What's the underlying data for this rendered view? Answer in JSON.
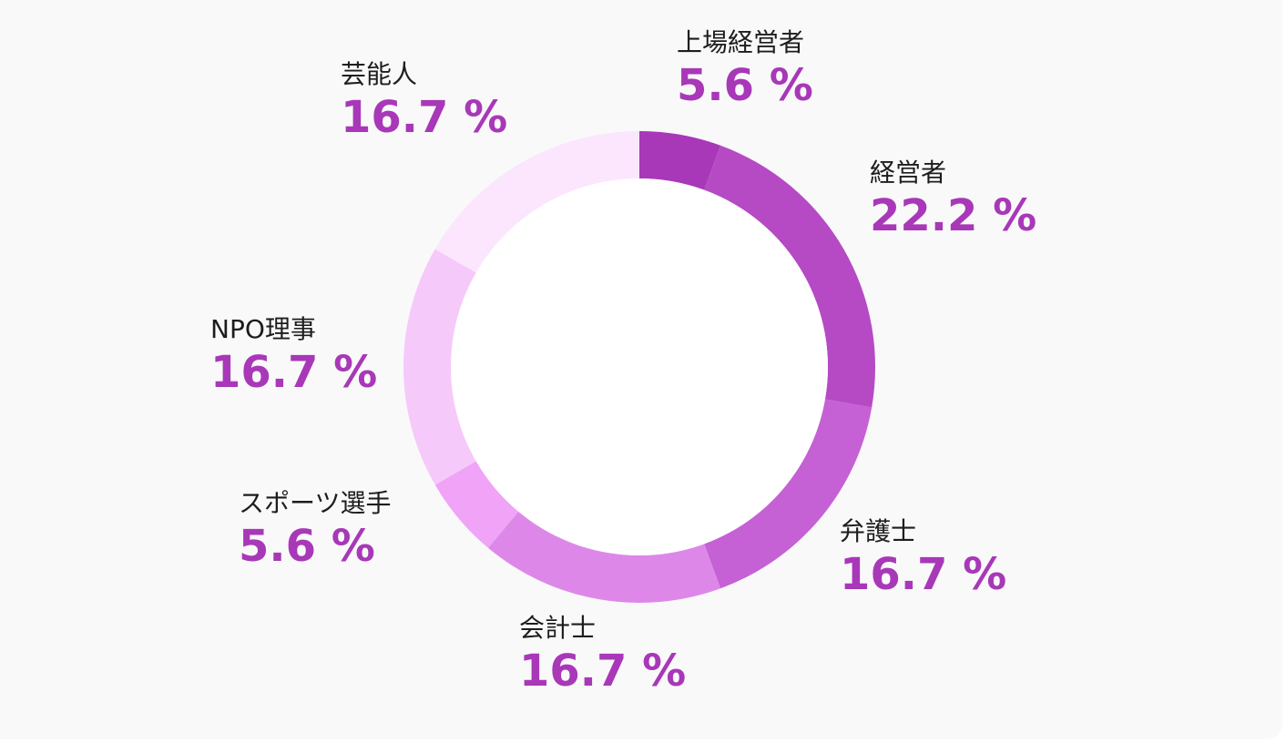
{
  "chart_data": {
    "type": "pie",
    "donut": true,
    "categories": [
      "上場経営者",
      "経営者",
      "弁護士",
      "会計士",
      "スポーツ選手",
      "NPO理事",
      "芸能人"
    ],
    "values": [
      5.6,
      22.2,
      16.7,
      16.7,
      5.6,
      16.7,
      16.7
    ],
    "value_labels": [
      "5.6 %",
      "22.2 %",
      "16.7 %",
      "16.7 %",
      "5.6 %",
      "16.7 %",
      "16.7 %"
    ],
    "colors": [
      "#a838b8",
      "#b64ac4",
      "#c560d5",
      "#dd88e8",
      "#f0a3f7",
      "#f6c9fb",
      "#fbe6fd"
    ],
    "value_color": "#a838b8",
    "legend": "none"
  }
}
